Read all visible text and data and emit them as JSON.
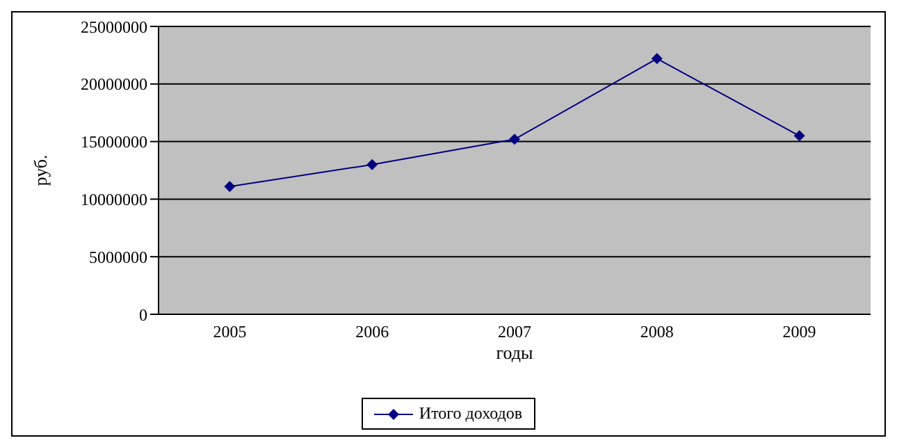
{
  "chart_data": {
    "type": "line",
    "xlabel": "годы",
    "ylabel": "руб.",
    "categories": [
      "2005",
      "2006",
      "2007",
      "2008",
      "2009"
    ],
    "series": [
      {
        "name": "Итого доходов",
        "color": "#000080",
        "values": [
          11100000,
          13000000,
          15200000,
          22200000,
          15500000
        ]
      }
    ],
    "ylim": [
      0,
      25000000
    ],
    "yticks": [
      0,
      5000000,
      10000000,
      15000000,
      20000000,
      25000000
    ],
    "grid": "y",
    "legend": "bottom",
    "marker": "diamond",
    "line_style": "solid"
  }
}
